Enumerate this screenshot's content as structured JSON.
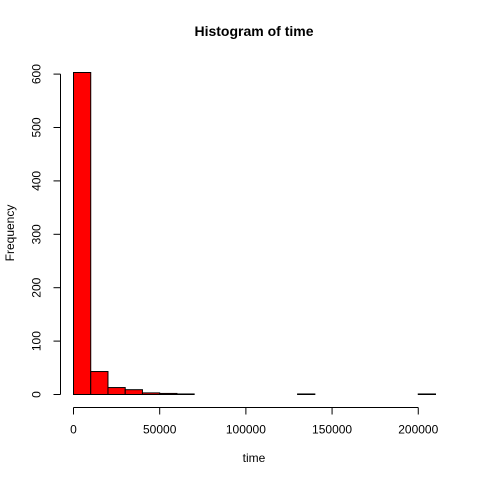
{
  "chart_data": {
    "type": "bar",
    "title": "Histogram of time",
    "xlabel": "time",
    "ylabel": "Frequency",
    "bin_width": 10000,
    "bins": [
      {
        "start": 0,
        "end": 10000,
        "count": 603
      },
      {
        "start": 10000,
        "end": 20000,
        "count": 43
      },
      {
        "start": 20000,
        "end": 30000,
        "count": 13
      },
      {
        "start": 30000,
        "end": 40000,
        "count": 9
      },
      {
        "start": 40000,
        "end": 50000,
        "count": 3
      },
      {
        "start": 50000,
        "end": 60000,
        "count": 2
      },
      {
        "start": 60000,
        "end": 70000,
        "count": 1
      },
      {
        "start": 70000,
        "end": 80000,
        "count": 0
      },
      {
        "start": 80000,
        "end": 90000,
        "count": 0
      },
      {
        "start": 90000,
        "end": 100000,
        "count": 0
      },
      {
        "start": 100000,
        "end": 110000,
        "count": 0
      },
      {
        "start": 110000,
        "end": 120000,
        "count": 0
      },
      {
        "start": 120000,
        "end": 130000,
        "count": 0
      },
      {
        "start": 130000,
        "end": 140000,
        "count": 1
      },
      {
        "start": 140000,
        "end": 150000,
        "count": 0
      },
      {
        "start": 150000,
        "end": 160000,
        "count": 0
      },
      {
        "start": 160000,
        "end": 170000,
        "count": 0
      },
      {
        "start": 170000,
        "end": 180000,
        "count": 0
      },
      {
        "start": 180000,
        "end": 190000,
        "count": 0
      },
      {
        "start": 190000,
        "end": 200000,
        "count": 0
      },
      {
        "start": 200000,
        "end": 210000,
        "count": 1
      }
    ],
    "xlim": [
      0,
      210000
    ],
    "ylim": [
      0,
      603
    ],
    "x_ticks": [
      0,
      50000,
      100000,
      150000,
      200000
    ],
    "x_tick_labels": [
      "0",
      "50000",
      "100000",
      "150000",
      "200000"
    ],
    "y_ticks": [
      0,
      100,
      200,
      300,
      400,
      500,
      600
    ],
    "y_tick_labels": [
      "0",
      "100",
      "200",
      "300",
      "400",
      "500",
      "600"
    ],
    "grid": false,
    "colors": {
      "bar_fill": "#ff0000",
      "bar_stroke": "#000000"
    }
  }
}
